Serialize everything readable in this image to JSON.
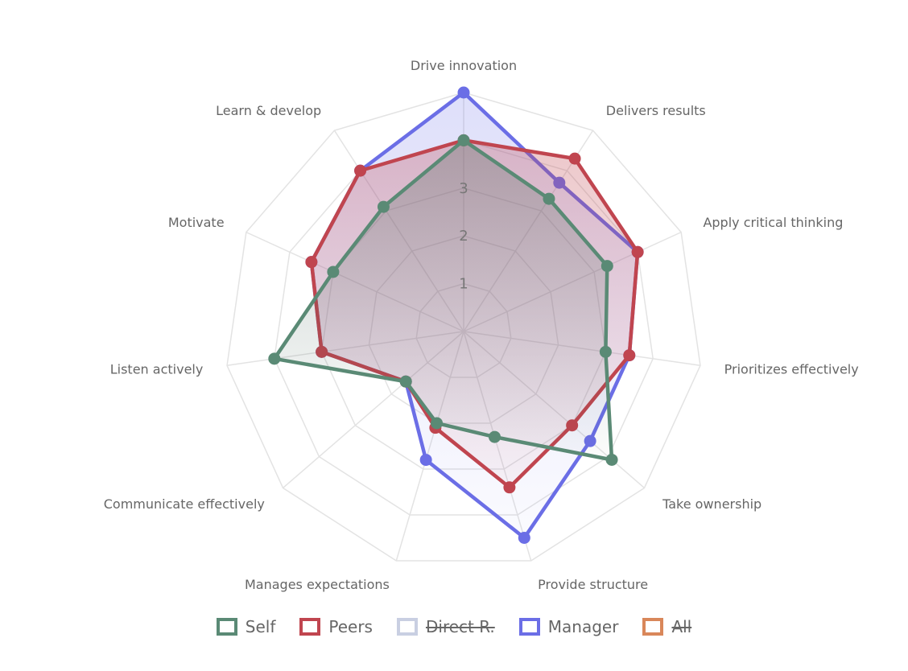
{
  "chart_data": {
    "type": "radar",
    "axes": [
      "Drive innovation",
      "Delivers results",
      "Apply critical thinking",
      "Prioritizes effectively",
      "Take ownership",
      "Provide structure",
      "Manages expectations",
      "Communicate effectively",
      "Listen actively",
      "Motivate",
      "Learn & develop"
    ],
    "rmax": 5,
    "ticks": [
      "1",
      "2",
      "3"
    ],
    "tick_values": [
      1,
      2,
      3
    ],
    "grid": true,
    "legend_position": "bottom",
    "series": [
      {
        "name": "Self",
        "color": "#5a8a75",
        "visible": true,
        "values": [
          4.0,
          3.3,
          3.3,
          3.0,
          4.1,
          2.3,
          2.0,
          1.6,
          4.0,
          3.0,
          3.1
        ]
      },
      {
        "name": "Peers",
        "color": "#c0454f",
        "visible": true,
        "values": [
          4.0,
          4.3,
          4.0,
          3.5,
          3.0,
          3.4,
          2.1,
          1.6,
          3.0,
          3.5,
          4.0
        ]
      },
      {
        "name": "Direct R.",
        "color": "#c9cfe2",
        "visible": false,
        "values": []
      },
      {
        "name": "Manager",
        "color": "#6b6ee6",
        "visible": true,
        "values": [
          5.0,
          3.7,
          4.0,
          3.5,
          3.5,
          4.5,
          2.8,
          1.6,
          3.0,
          3.5,
          4.0
        ]
      },
      {
        "name": "All",
        "color": "#d9875a",
        "visible": false,
        "values": []
      }
    ]
  },
  "legend": {
    "items": [
      {
        "label": "Self",
        "color": "#5a8a75",
        "visible": true
      },
      {
        "label": "Peers",
        "color": "#c0454f",
        "visible": true
      },
      {
        "label": "Direct R.",
        "color": "#c9cfe2",
        "visible": false
      },
      {
        "label": "Manager",
        "color": "#6b6ee6",
        "visible": true
      },
      {
        "label": "All",
        "color": "#d9875a",
        "visible": false
      }
    ]
  }
}
